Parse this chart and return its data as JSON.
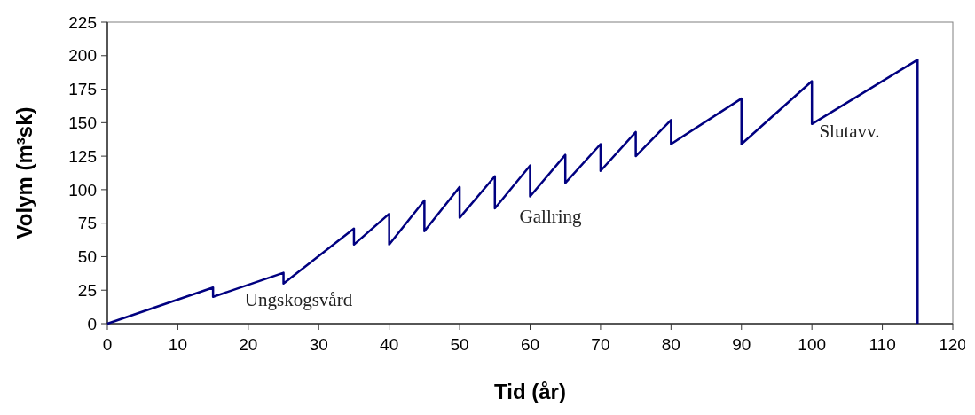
{
  "chart_data": {
    "type": "line",
    "xlabel": "Tid (år)",
    "ylabel": "Volym (m³sk)",
    "xlim": [
      0,
      120
    ],
    "xticks": [
      0,
      10,
      20,
      30,
      40,
      50,
      60,
      70,
      80,
      90,
      100,
      110,
      120
    ],
    "ylim": [
      0,
      225
    ],
    "yticks": [
      0,
      25,
      50,
      75,
      100,
      125,
      150,
      175,
      200,
      225
    ],
    "grid": false,
    "marker": "none",
    "line_style": "solid",
    "series": [
      {
        "color": "#000080",
        "x": [
          0,
          15,
          15,
          25,
          25,
          35,
          35,
          40,
          40,
          45,
          45,
          50,
          50,
          55,
          55,
          60,
          60,
          65,
          65,
          70,
          70,
          75,
          75,
          80,
          80,
          90,
          90,
          100,
          100,
          115,
          115
        ],
        "values": [
          0,
          27,
          20,
          38,
          30,
          71,
          59,
          82,
          59,
          92,
          69,
          102,
          79,
          110,
          86,
          118,
          95,
          126,
          105,
          134,
          114,
          143,
          125,
          152,
          134,
          168,
          134,
          181,
          149,
          197,
          0
        ]
      }
    ],
    "annotations": [
      "Ungskogsvård",
      "Gallring",
      "Slutavv."
    ]
  }
}
